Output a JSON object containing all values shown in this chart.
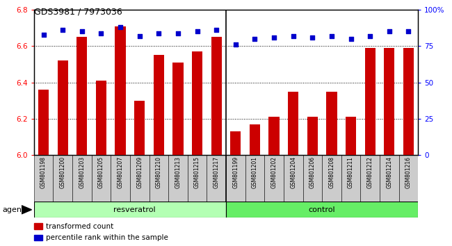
{
  "title": "GDS3981 / 7973036",
  "samples": [
    "GSM801198",
    "GSM801200",
    "GSM801203",
    "GSM801205",
    "GSM801207",
    "GSM801209",
    "GSM801210",
    "GSM801213",
    "GSM801215",
    "GSM801217",
    "GSM801199",
    "GSM801201",
    "GSM801202",
    "GSM801204",
    "GSM801206",
    "GSM801208",
    "GSM801211",
    "GSM801212",
    "GSM801214",
    "GSM801216"
  ],
  "transformed_count": [
    6.36,
    6.52,
    6.65,
    6.41,
    6.71,
    6.3,
    6.55,
    6.51,
    6.57,
    6.65,
    6.13,
    6.17,
    6.21,
    6.35,
    6.21,
    6.35,
    6.21,
    6.59,
    6.59,
    6.59
  ],
  "percentile_rank": [
    83,
    86,
    85,
    84,
    88,
    82,
    84,
    84,
    85,
    86,
    76,
    80,
    81,
    82,
    81,
    82,
    80,
    82,
    85,
    85
  ],
  "n_resveratrol": 10,
  "n_control": 10,
  "bar_color": "#cc0000",
  "dot_color": "#0000cc",
  "ylim_left": [
    6.0,
    6.8
  ],
  "ylim_right": [
    0,
    100
  ],
  "yticks_left": [
    6.0,
    6.2,
    6.4,
    6.6,
    6.8
  ],
  "yticks_right": [
    0,
    25,
    50,
    75,
    100
  ],
  "grid_values": [
    6.2,
    6.4,
    6.6
  ],
  "resveratrol_color": "#b3ffb3",
  "control_color": "#66ee66",
  "label_bg_color": "#cccccc",
  "legend": [
    {
      "label": "transformed count",
      "color": "#cc0000"
    },
    {
      "label": "percentile rank within the sample",
      "color": "#0000cc"
    }
  ],
  "bar_width": 0.55
}
